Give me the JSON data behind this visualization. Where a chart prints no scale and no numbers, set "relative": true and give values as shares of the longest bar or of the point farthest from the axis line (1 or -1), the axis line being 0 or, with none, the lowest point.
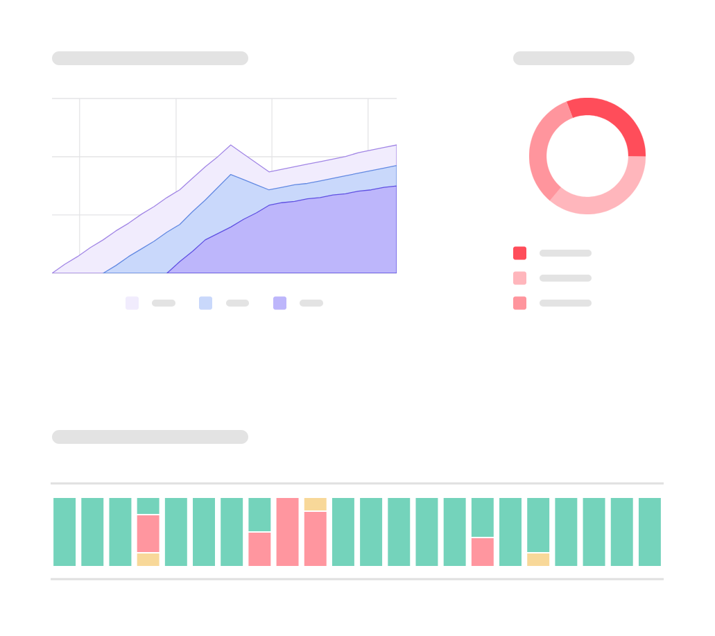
{
  "chart_data": [
    {
      "type": "area",
      "relative": true,
      "grid": true,
      "categories": [
        null,
        null,
        null,
        null,
        null,
        null,
        null,
        null,
        null,
        null,
        null,
        null,
        null,
        null,
        null,
        null,
        null,
        null,
        null,
        null,
        null,
        null,
        null,
        null,
        null,
        null,
        null,
        null
      ],
      "series": [
        {
          "color": "#f1ecfd",
          "values": [
            0,
            0.07,
            0.13,
            0.2,
            0.26,
            0.33,
            0.39,
            0.46,
            0.52,
            0.59,
            0.65,
            0.74,
            0.83,
            0.91,
            1,
            0.93,
            0.86,
            0.79,
            0.81,
            0.83,
            0.85,
            0.87,
            0.89,
            0.91,
            0.94,
            0.96,
            0.98,
            1
          ]
        },
        {
          "color": "#c9d8fb",
          "values": [
            null,
            null,
            null,
            null,
            0,
            0.06,
            0.13,
            0.19,
            0.25,
            0.32,
            0.38,
            0.48,
            0.57,
            0.67,
            0.77,
            0.73,
            0.69,
            0.65,
            0.67,
            0.69,
            0.7,
            0.72,
            0.74,
            0.76,
            0.78,
            0.8,
            0.82,
            0.84
          ]
        },
        {
          "color": "#bdb6fb",
          "values": [
            null,
            null,
            null,
            null,
            null,
            null,
            null,
            null,
            null,
            0,
            0.09,
            0.17,
            0.26,
            0.31,
            0.36,
            0.42,
            0.47,
            0.53,
            0.55,
            0.56,
            0.58,
            0.59,
            0.61,
            0.62,
            0.64,
            0.65,
            0.67,
            0.68
          ]
        }
      ]
    },
    {
      "type": "donut",
      "categories": [
        null,
        null,
        null
      ],
      "values": [
        31,
        36,
        33
      ],
      "colors": [
        "#ff4d5a",
        "#ffb6bc",
        "#ff959d"
      ]
    },
    {
      "type": "bar",
      "relative": true,
      "stacked": true,
      "categories": [
        null,
        null,
        null,
        null,
        null,
        null,
        null,
        null,
        null,
        null,
        null,
        null,
        null,
        null,
        null,
        null,
        null,
        null,
        null,
        null,
        null,
        null
      ],
      "series": [
        {
          "color": "#f8d899",
          "values": [
            null,
            null,
            null,
            0.2,
            null,
            null,
            null,
            null,
            null,
            null,
            null,
            null,
            null,
            null,
            null,
            null,
            null,
            0.2,
            null,
            null,
            null,
            null
          ]
        },
        {
          "color": "#ff969f",
          "values": [
            null,
            null,
            null,
            0.55,
            null,
            null,
            null,
            0.5,
            1,
            0.8,
            null,
            null,
            null,
            null,
            null,
            0.42,
            null,
            null,
            null,
            null,
            null,
            null
          ]
        },
        {
          "color": "#74d3bb",
          "values": [
            1,
            1,
            1,
            0.25,
            1,
            1,
            1,
            0.5,
            null,
            null,
            1,
            1,
            1,
            1,
            1,
            0.58,
            1,
            0.8,
            1,
            1,
            1,
            1
          ]
        },
        {
          "color": "#f8d899",
          "values": [
            null,
            null,
            null,
            null,
            null,
            null,
            null,
            null,
            null,
            0.2,
            null,
            null,
            null,
            null,
            null,
            null,
            null,
            null,
            null,
            null,
            null,
            null
          ]
        }
      ]
    }
  ]
}
